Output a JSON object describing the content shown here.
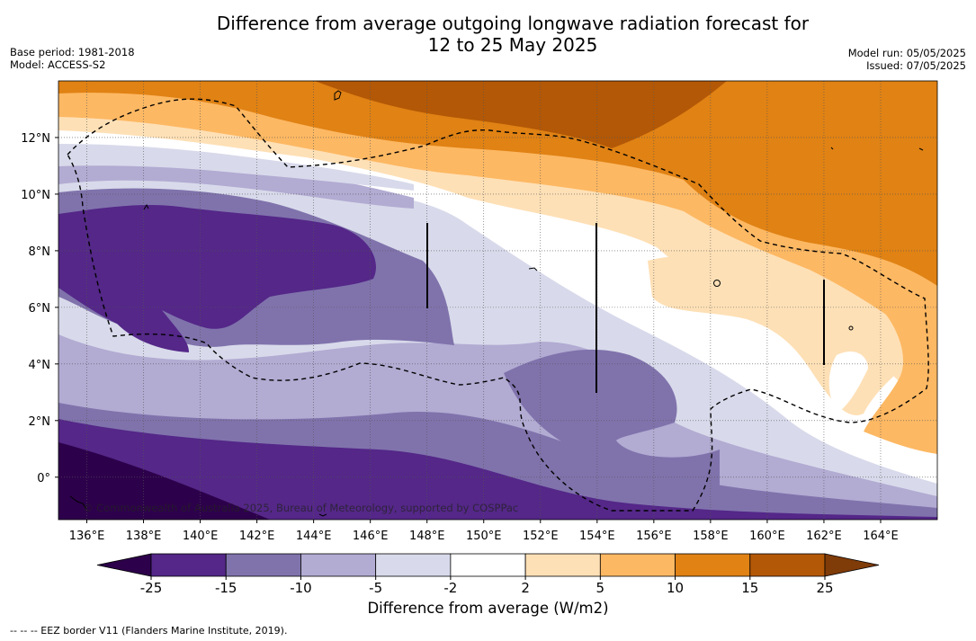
{
  "header": {
    "title_line1": "Difference from average outgoing longwave radiation forecast for",
    "title_line2": "12 to 25 May 2025",
    "base_period": "Base period: 1981-2018",
    "model": "Model: ACCESS-S2",
    "model_run": "Model run: 05/05/2025",
    "issued": "Issued: 07/05/2025"
  },
  "chart_data": {
    "type": "heatmap",
    "x_axis": {
      "ticks": [
        "136°E",
        "138°E",
        "140°E",
        "142°E",
        "144°E",
        "146°E",
        "148°E",
        "150°E",
        "152°E",
        "154°E",
        "156°E",
        "158°E",
        "160°E",
        "162°E",
        "164°E"
      ],
      "tick_values": [
        136,
        138,
        140,
        142,
        144,
        146,
        148,
        150,
        152,
        154,
        156,
        158,
        160,
        162,
        164
      ],
      "xlim": [
        135,
        166
      ]
    },
    "y_axis": {
      "ticks": [
        "0°",
        "2°N",
        "4°N",
        "6°N",
        "8°N",
        "10°N",
        "12°N"
      ],
      "tick_values": [
        0,
        2,
        4,
        6,
        8,
        10,
        12
      ],
      "ylim": [
        -1.5,
        14
      ]
    },
    "colorbar": {
      "label": "Difference from average (W/m2)",
      "tick_labels": [
        "-25",
        "-15",
        "-10",
        "-5",
        "-2",
        "2",
        "5",
        "10",
        "15",
        "25"
      ],
      "levels": [
        -25,
        -15,
        -10,
        -5,
        -2,
        2,
        5,
        10,
        15,
        25
      ],
      "colors": [
        "#2d004b",
        "#542788",
        "#8073ac",
        "#b2abd2",
        "#d8daeb",
        "#ffffff",
        "#fee0b6",
        "#fdb863",
        "#e08214",
        "#b35806",
        "#7f3b08"
      ]
    },
    "grid": true,
    "credit": "© Commonwealth of Australia 2025, Bureau of Meteorology, supported by COSPPac"
  },
  "footnote": "--  --  -- EEZ border V11 (Flanders Marine Institute, 2019)."
}
